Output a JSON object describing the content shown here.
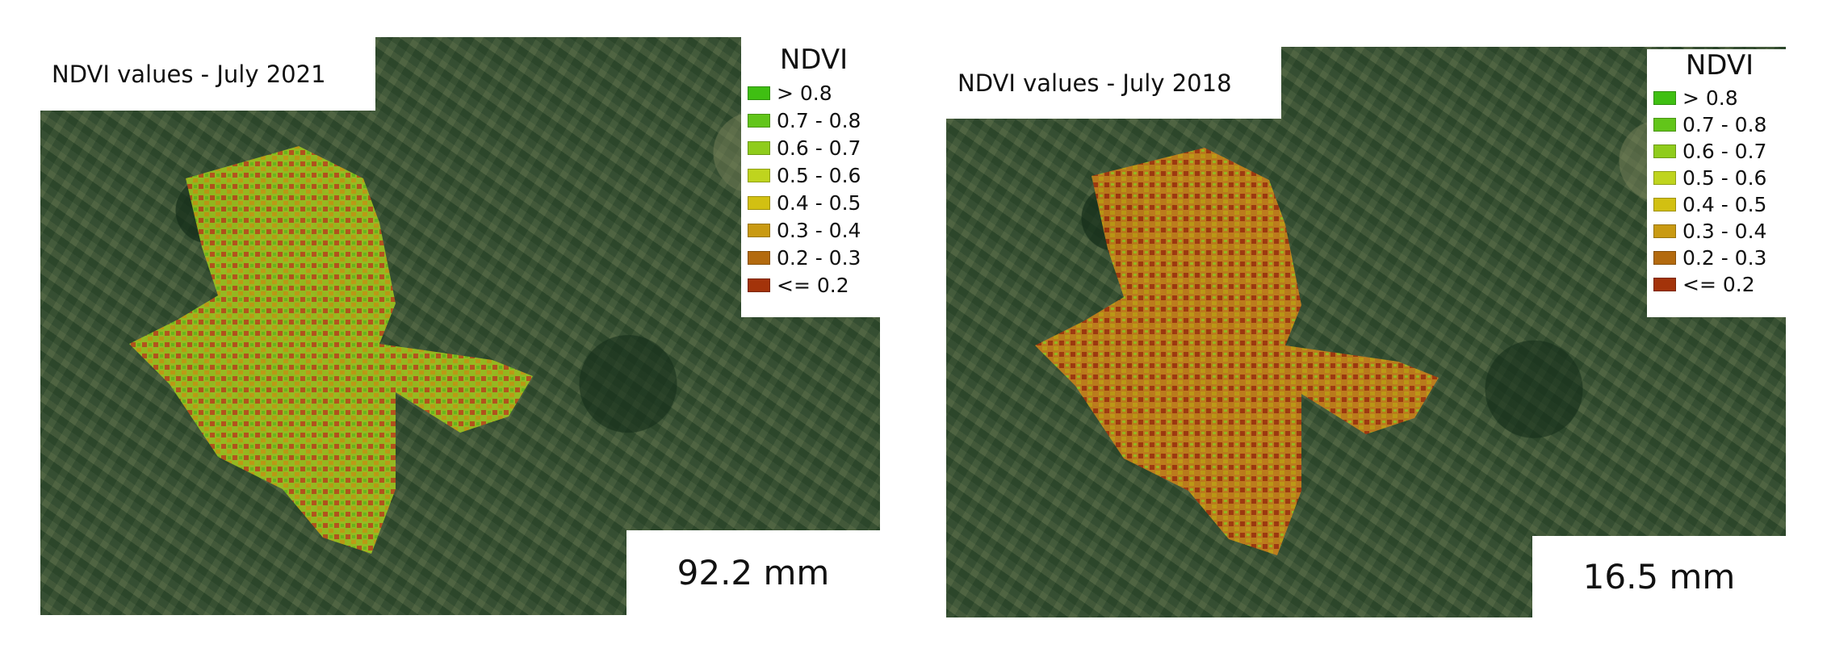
{
  "panels": [
    {
      "title": "NDVI values - July 2021",
      "precipitation": "92.2 mm",
      "dominant": "green-yellow"
    },
    {
      "title": "NDVI values - July 2018",
      "precipitation": "16.5 mm",
      "dominant": "orange-red"
    }
  ],
  "legend": {
    "title": "NDVI",
    "items": [
      {
        "label": "> 0.8",
        "color": "#3fbf12"
      },
      {
        "label": "0.7 - 0.8",
        "color": "#62c51a"
      },
      {
        "label": "0.6 - 0.7",
        "color": "#8fcc1c"
      },
      {
        "label": "0.5 - 0.6",
        "color": "#bfd41e"
      },
      {
        "label": "0.4 - 0.5",
        "color": "#d2c012"
      },
      {
        "label": "0.3 - 0.4",
        "color": "#c99a12"
      },
      {
        "label": "0.2 - 0.3",
        "color": "#b36a0e"
      },
      {
        "label": "<= 0.2",
        "color": "#a3330a"
      }
    ]
  }
}
